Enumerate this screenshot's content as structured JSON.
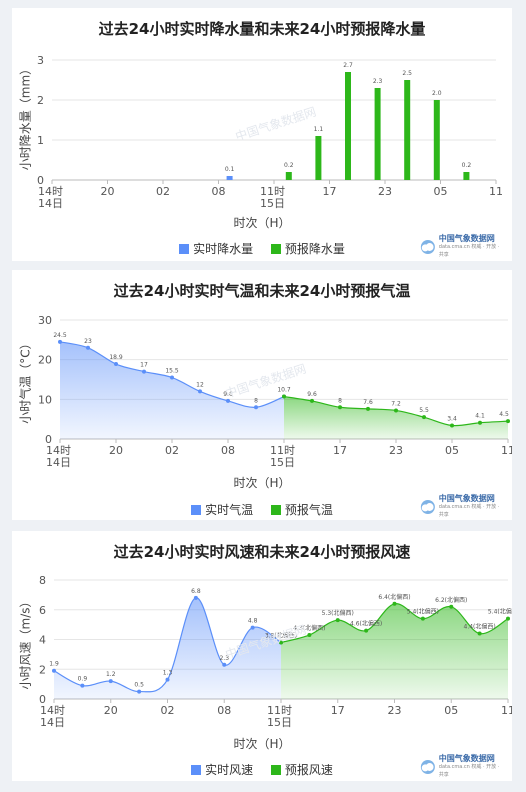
{
  "chart_data": [
    {
      "type": "bar",
      "title": "过去24小时实时降水量和未来24小时预报降水量",
      "ylabel": "小时降水量（mm）",
      "xlabel": "时次（H）",
      "ylim": [
        0,
        3
      ],
      "y_ticks": [
        0,
        1,
        2,
        3
      ],
      "x_ticks": [
        "14时\n14日",
        "20",
        "02",
        "08",
        "11时\n15日",
        "17",
        "23",
        "05",
        "11"
      ],
      "categories": [
        "14时",
        "15",
        "16",
        "17",
        "18",
        "19",
        "20",
        "21",
        "22",
        "23",
        "00",
        "01",
        "02",
        "03",
        "04",
        "05",
        "06",
        "07",
        "08",
        "09",
        "10",
        "11时",
        "12",
        "13",
        "14",
        "15",
        "16",
        "17",
        "18",
        "19",
        "20",
        "21",
        "22",
        "23",
        "00",
        "01",
        "02",
        "03",
        "04",
        "05",
        "06",
        "07",
        "08",
        "09",
        "10",
        "11"
      ],
      "split_index": 21,
      "series": [
        {
          "name": "实时降水量",
          "color": "#5b8ff9",
          "values": [
            0,
            0,
            0,
            0,
            0,
            0,
            0,
            0,
            0,
            0,
            0,
            0,
            0,
            0,
            0,
            0,
            0,
            0,
            0.1,
            0,
            0,
            null,
            null,
            null,
            null,
            null,
            null,
            null,
            null,
            null,
            null,
            null,
            null,
            null,
            null,
            null,
            null,
            null,
            null,
            null,
            null,
            null,
            null,
            null,
            null,
            null
          ]
        },
        {
          "name": "预报降水量",
          "color": "#2db71a",
          "values": [
            null,
            null,
            null,
            null,
            null,
            null,
            null,
            null,
            null,
            null,
            null,
            null,
            null,
            null,
            null,
            null,
            null,
            null,
            null,
            null,
            null,
            0,
            0,
            0,
            0.2,
            0,
            0,
            1.1,
            0,
            0,
            2.7,
            0,
            0,
            2.3,
            0,
            0,
            2.5,
            0,
            0,
            2.0,
            0,
            0,
            0.2,
            0,
            0,
            0
          ]
        }
      ],
      "bar_labels": [
        {
          "index": 18,
          "text": "0.1"
        },
        {
          "index": 24,
          "text": "0.2"
        },
        {
          "index": 27,
          "text": "1.1"
        },
        {
          "index": 30,
          "text": "2.7"
        },
        {
          "index": 33,
          "text": "2.3"
        },
        {
          "index": 36,
          "text": "2.5"
        },
        {
          "index": 39,
          "text": "2.0"
        },
        {
          "index": 42,
          "text": "0.2"
        }
      ]
    },
    {
      "type": "area",
      "title": "过去24小时实时气温和未来24小时预报气温",
      "ylabel": "小时气温（°C）",
      "xlabel": "时次（H）",
      "ylim": [
        0,
        30
      ],
      "y_ticks": [
        0,
        10,
        20,
        30
      ],
      "x_ticks": [
        "14时\n14日",
        "20",
        "02",
        "08",
        "11时\n15日",
        "17",
        "23",
        "05",
        "11"
      ],
      "split_index": 8,
      "series": [
        {
          "name": "实时气温",
          "color": "#5b8ff9",
          "x": [
            0,
            1,
            2,
            3,
            4,
            5,
            6,
            7,
            8
          ],
          "values": [
            24.5,
            23.0,
            18.9,
            17.0,
            15.5,
            12.0,
            9.6,
            8.0,
            10.7
          ]
        },
        {
          "name": "预报气温",
          "color": "#2db71a",
          "x": [
            8,
            9,
            10,
            11,
            12,
            13,
            14,
            15,
            16
          ],
          "values": [
            10.7,
            9.6,
            8.0,
            7.6,
            7.2,
            5.5,
            3.4,
            4.1,
            4.5
          ]
        }
      ]
    },
    {
      "type": "area",
      "title": "过去24小时实时风速和未来24小时预报风速",
      "ylabel": "小时风速（m/s）",
      "xlabel": "时次（H）",
      "ylim": [
        0,
        8
      ],
      "y_ticks": [
        0,
        2,
        4,
        6,
        8
      ],
      "x_ticks": [
        "14时\n14日",
        "20",
        "02",
        "08",
        "11时\n15日",
        "17",
        "23",
        "05",
        "11"
      ],
      "split_index": 8,
      "series": [
        {
          "name": "实时风速",
          "color": "#5b8ff9",
          "x": [
            0,
            1,
            2,
            3,
            4,
            5,
            6,
            7,
            8
          ],
          "values": [
            1.9,
            0.9,
            1.2,
            0.5,
            1.3,
            6.8,
            2.3,
            4.8,
            3.8
          ],
          "labels": [
            "1.9",
            "0.9",
            "1.2",
            "0.5",
            "1.3",
            "6.8",
            "2.3",
            "4.8",
            "3.8(北偏西)"
          ]
        },
        {
          "name": "预报风速",
          "color": "#2db71a",
          "x": [
            8,
            9,
            10,
            11,
            12,
            13,
            14,
            15,
            16
          ],
          "values": [
            3.8,
            4.3,
            5.3,
            4.6,
            6.4,
            5.4,
            6.2,
            4.4,
            5.4
          ],
          "labels": [
            "3.8(北偏西)",
            "4.3(北偏西)",
            "5.3(北偏西)",
            "4.6(北偏西)",
            "6.4(北偏西)",
            "5.4(北偏西)",
            "6.2(北偏西)",
            "4.4(北偏西)",
            "5.4(北偏西)"
          ]
        }
      ]
    }
  ],
  "logo": {
    "name": "中国气象数据网",
    "sub": "data.cma.cn 权威 · 开放 · 共享"
  },
  "watermark": "中国气象数据网"
}
